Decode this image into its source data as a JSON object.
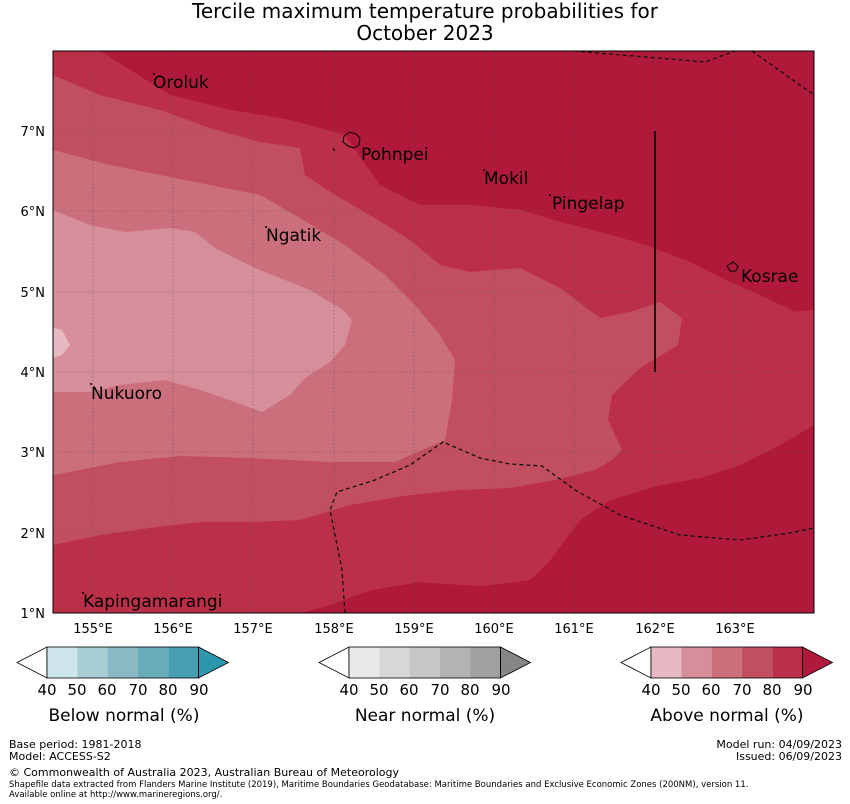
{
  "title": {
    "line1": "Tercile maximum temperature probabilities for",
    "line2": "October 2023"
  },
  "map": {
    "lat_ticks": [
      "7°N",
      "6°N",
      "5°N",
      "4°N",
      "3°N",
      "2°N",
      "1°N"
    ],
    "lon_ticks": [
      "155°E",
      "156°E",
      "157°E",
      "158°E",
      "159°E",
      "160°E",
      "161°E",
      "162°E",
      "163°E"
    ],
    "places": [
      {
        "name": "Oroluk"
      },
      {
        "name": "Pohnpei"
      },
      {
        "name": "Mokil"
      },
      {
        "name": "Pingelap"
      },
      {
        "name": "Ngatik"
      },
      {
        "name": "Kosrae"
      },
      {
        "name": "Nukuoro"
      },
      {
        "name": "Kapingamarangi"
      }
    ],
    "colors": {
      "above_40": "#e7b9c2",
      "above_50": "#d68f9a",
      "above_60": "#cb6f7d",
      "above_70": "#c24f60",
      "above_80": "#bb3048",
      "above_90": "#b0193a"
    }
  },
  "legends": [
    {
      "title": "Below normal (%)",
      "ticks": [
        "40",
        "50",
        "60",
        "70",
        "80",
        "90"
      ],
      "colors": [
        "#ffffff",
        "#cde6ec",
        "#a9cdd4",
        "#8ab9c3",
        "#6aabba",
        "#489fb1",
        "#2e97ad"
      ]
    },
    {
      "title": "Near normal (%)",
      "ticks": [
        "40",
        "50",
        "60",
        "70",
        "80",
        "90"
      ],
      "colors": [
        "#ffffff",
        "#e9e9e9",
        "#d7d7d7",
        "#c7c7c7",
        "#b3b3b3",
        "#a0a0a0",
        "#868686"
      ]
    },
    {
      "title": "Above normal (%)",
      "ticks": [
        "40",
        "50",
        "60",
        "70",
        "80",
        "90"
      ],
      "colors": [
        "#ffffff",
        "#e7b9c2",
        "#d68f9a",
        "#cb6f7d",
        "#c24f60",
        "#bb3048",
        "#b0193a"
      ]
    }
  ],
  "footer": {
    "base_period": "Base period: 1981-2018",
    "model": "Model: ACCESS-S2",
    "model_run": "Model run: 04/09/2023",
    "issued": "Issued: 06/09/2023",
    "copyright": "© Commonwealth of Australia 2023, Australian Bureau of Meteorology",
    "shapefile1": "Shapefile data extracted from Flanders Marine Institute (2019), Maritime Boundaries Geodatabase: Maritime Boundaries and Exclusive Economic Zones (200NM), version 11.",
    "shapefile2": "Available online at http://www.marineregions.org/."
  }
}
